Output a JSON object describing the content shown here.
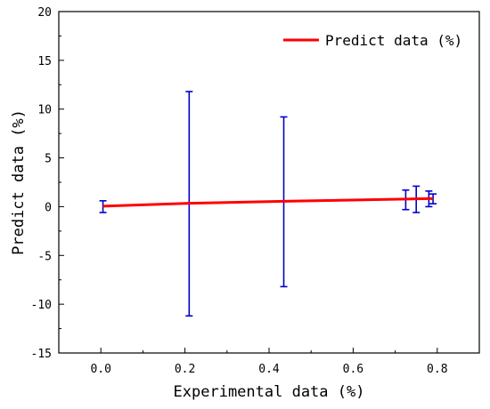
{
  "chart_data": {
    "type": "line",
    "xlabel": "Experimental data (%)",
    "ylabel": "Predict data (%)",
    "xlim": [
      -0.1,
      0.9
    ],
    "ylim": [
      -15,
      20
    ],
    "x_ticks": [
      0.0,
      0.2,
      0.4,
      0.6,
      0.8
    ],
    "x_tick_labels": [
      "0.0",
      "0.2",
      "0.4",
      "0.6",
      "0.8"
    ],
    "y_ticks": [
      -15,
      -10,
      -5,
      0,
      5,
      10,
      15,
      20
    ],
    "y_tick_labels": [
      "-15",
      "-10",
      "-5",
      "0",
      "5",
      "10",
      "15",
      "20"
    ],
    "grid": false,
    "legend_position": "top-right",
    "series": [
      {
        "name": "Predict data (%)",
        "color": "#ff0000",
        "x": [
          0.005,
          0.21,
          0.435,
          0.725,
          0.75,
          0.78,
          0.79
        ],
        "y": [
          0.05,
          0.35,
          0.55,
          0.78,
          0.8,
          0.82,
          0.83
        ]
      }
    ],
    "error_bars": {
      "color": "#0000cc",
      "points": [
        {
          "x": 0.005,
          "low": -0.6,
          "high": 0.6
        },
        {
          "x": 0.21,
          "low": -11.2,
          "high": 11.8
        },
        {
          "x": 0.435,
          "low": -8.2,
          "high": 9.2
        },
        {
          "x": 0.725,
          "low": -0.3,
          "high": 1.7
        },
        {
          "x": 0.75,
          "low": -0.6,
          "high": 2.1
        },
        {
          "x": 0.78,
          "low": 0.0,
          "high": 1.6
        },
        {
          "x": 0.79,
          "low": 0.3,
          "high": 1.3
        }
      ]
    }
  }
}
